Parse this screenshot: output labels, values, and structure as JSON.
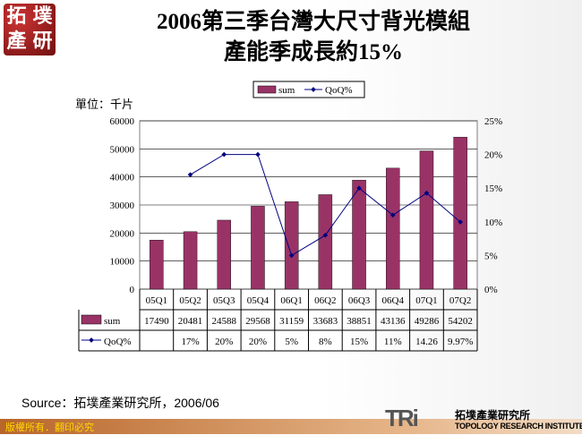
{
  "logo": {
    "chars": [
      "拓",
      "墣",
      "產",
      "研"
    ]
  },
  "title": {
    "line1": "2006第三季台灣大尺寸背光模組",
    "line2": "產能季成長約15%"
  },
  "unit_label": "單位：千片",
  "source": "Source：拓墣產業研究所，2006/06",
  "footer": {
    "copyright": "版權所有．翻印必究",
    "brand_logo": "TRi",
    "brand_cn": "拓墣產業研究所",
    "brand_en": "TOPOLOGY RESEARCH INSTITUTE"
  },
  "colors": {
    "bar": "#993366",
    "line": "#000080",
    "footer": "#c87a3e"
  },
  "chart_data": {
    "type": "bar+line",
    "categories": [
      "05Q1",
      "05Q2",
      "05Q3",
      "05Q4",
      "06Q1",
      "06Q2",
      "06Q3",
      "06Q4",
      "07Q1",
      "07Q2"
    ],
    "series": [
      {
        "name": "sum",
        "type": "bar",
        "axis": "left",
        "values": [
          17490,
          20481,
          24588,
          29568,
          31159,
          33683,
          38851,
          43136,
          49286,
          54202
        ]
      },
      {
        "name": "QoQ%",
        "type": "line",
        "axis": "right",
        "values": [
          null,
          17,
          20,
          20,
          5,
          8,
          15,
          11,
          14.26,
          9.97
        ],
        "labels": [
          "",
          "17%",
          "20%",
          "20%",
          "5%",
          "8%",
          "15%",
          "11%",
          "14.26",
          "9.97%"
        ]
      }
    ],
    "left_axis": {
      "range": [
        0,
        60000
      ],
      "ticks": [
        "0",
        "10000",
        "20000",
        "30000",
        "40000",
        "50000",
        "60000"
      ]
    },
    "right_axis": {
      "range": [
        0,
        25
      ],
      "ticks": [
        "0%",
        "5%",
        "10%",
        "15%",
        "20%",
        "25%"
      ]
    },
    "grid": true,
    "legend": "top",
    "data_table": true
  }
}
